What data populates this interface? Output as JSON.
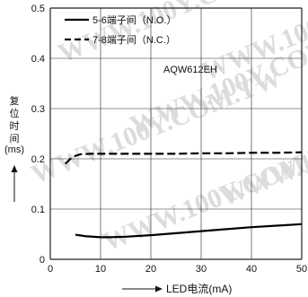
{
  "chart_data": {
    "type": "line",
    "annotation": "AQW612EH",
    "xlabel": "LED电流(mA)",
    "ylabel_lines": [
      "复",
      "位",
      "时",
      "间"
    ],
    "ylabel_unit": "(ms)",
    "xlim": [
      0,
      50
    ],
    "ylim": [
      0,
      0.5
    ],
    "x_ticks": [
      "0",
      "10",
      "20",
      "30",
      "40",
      "50"
    ],
    "y_ticks": [
      "0",
      "0.1",
      "0.2",
      "0.3",
      "0.4",
      "0.5"
    ],
    "grid": true,
    "legend_position": "top-left",
    "watermark": "WWW.100Y.COM.TW",
    "series": [
      {
        "name": "5-6端子间（N.O.）",
        "style": "solid",
        "x": [
          5,
          7,
          10,
          12,
          15,
          20,
          25,
          30,
          35,
          40,
          45,
          50
        ],
        "y": [
          0.049,
          0.046,
          0.044,
          0.044,
          0.045,
          0.048,
          0.052,
          0.056,
          0.06,
          0.064,
          0.067,
          0.07
        ]
      },
      {
        "name": "7-8端子间（N.C.）",
        "style": "dashed",
        "x": [
          3,
          4,
          5,
          6,
          8,
          10,
          15,
          20,
          25,
          30,
          35,
          40,
          45,
          50
        ],
        "y": [
          0.19,
          0.2,
          0.206,
          0.209,
          0.21,
          0.21,
          0.21,
          0.21,
          0.21,
          0.211,
          0.211,
          0.212,
          0.212,
          0.213
        ]
      }
    ]
  },
  "colors": {
    "axis": "#111111",
    "grid": "#222222",
    "series": "#000000",
    "watermark": "#dcdcdc"
  }
}
